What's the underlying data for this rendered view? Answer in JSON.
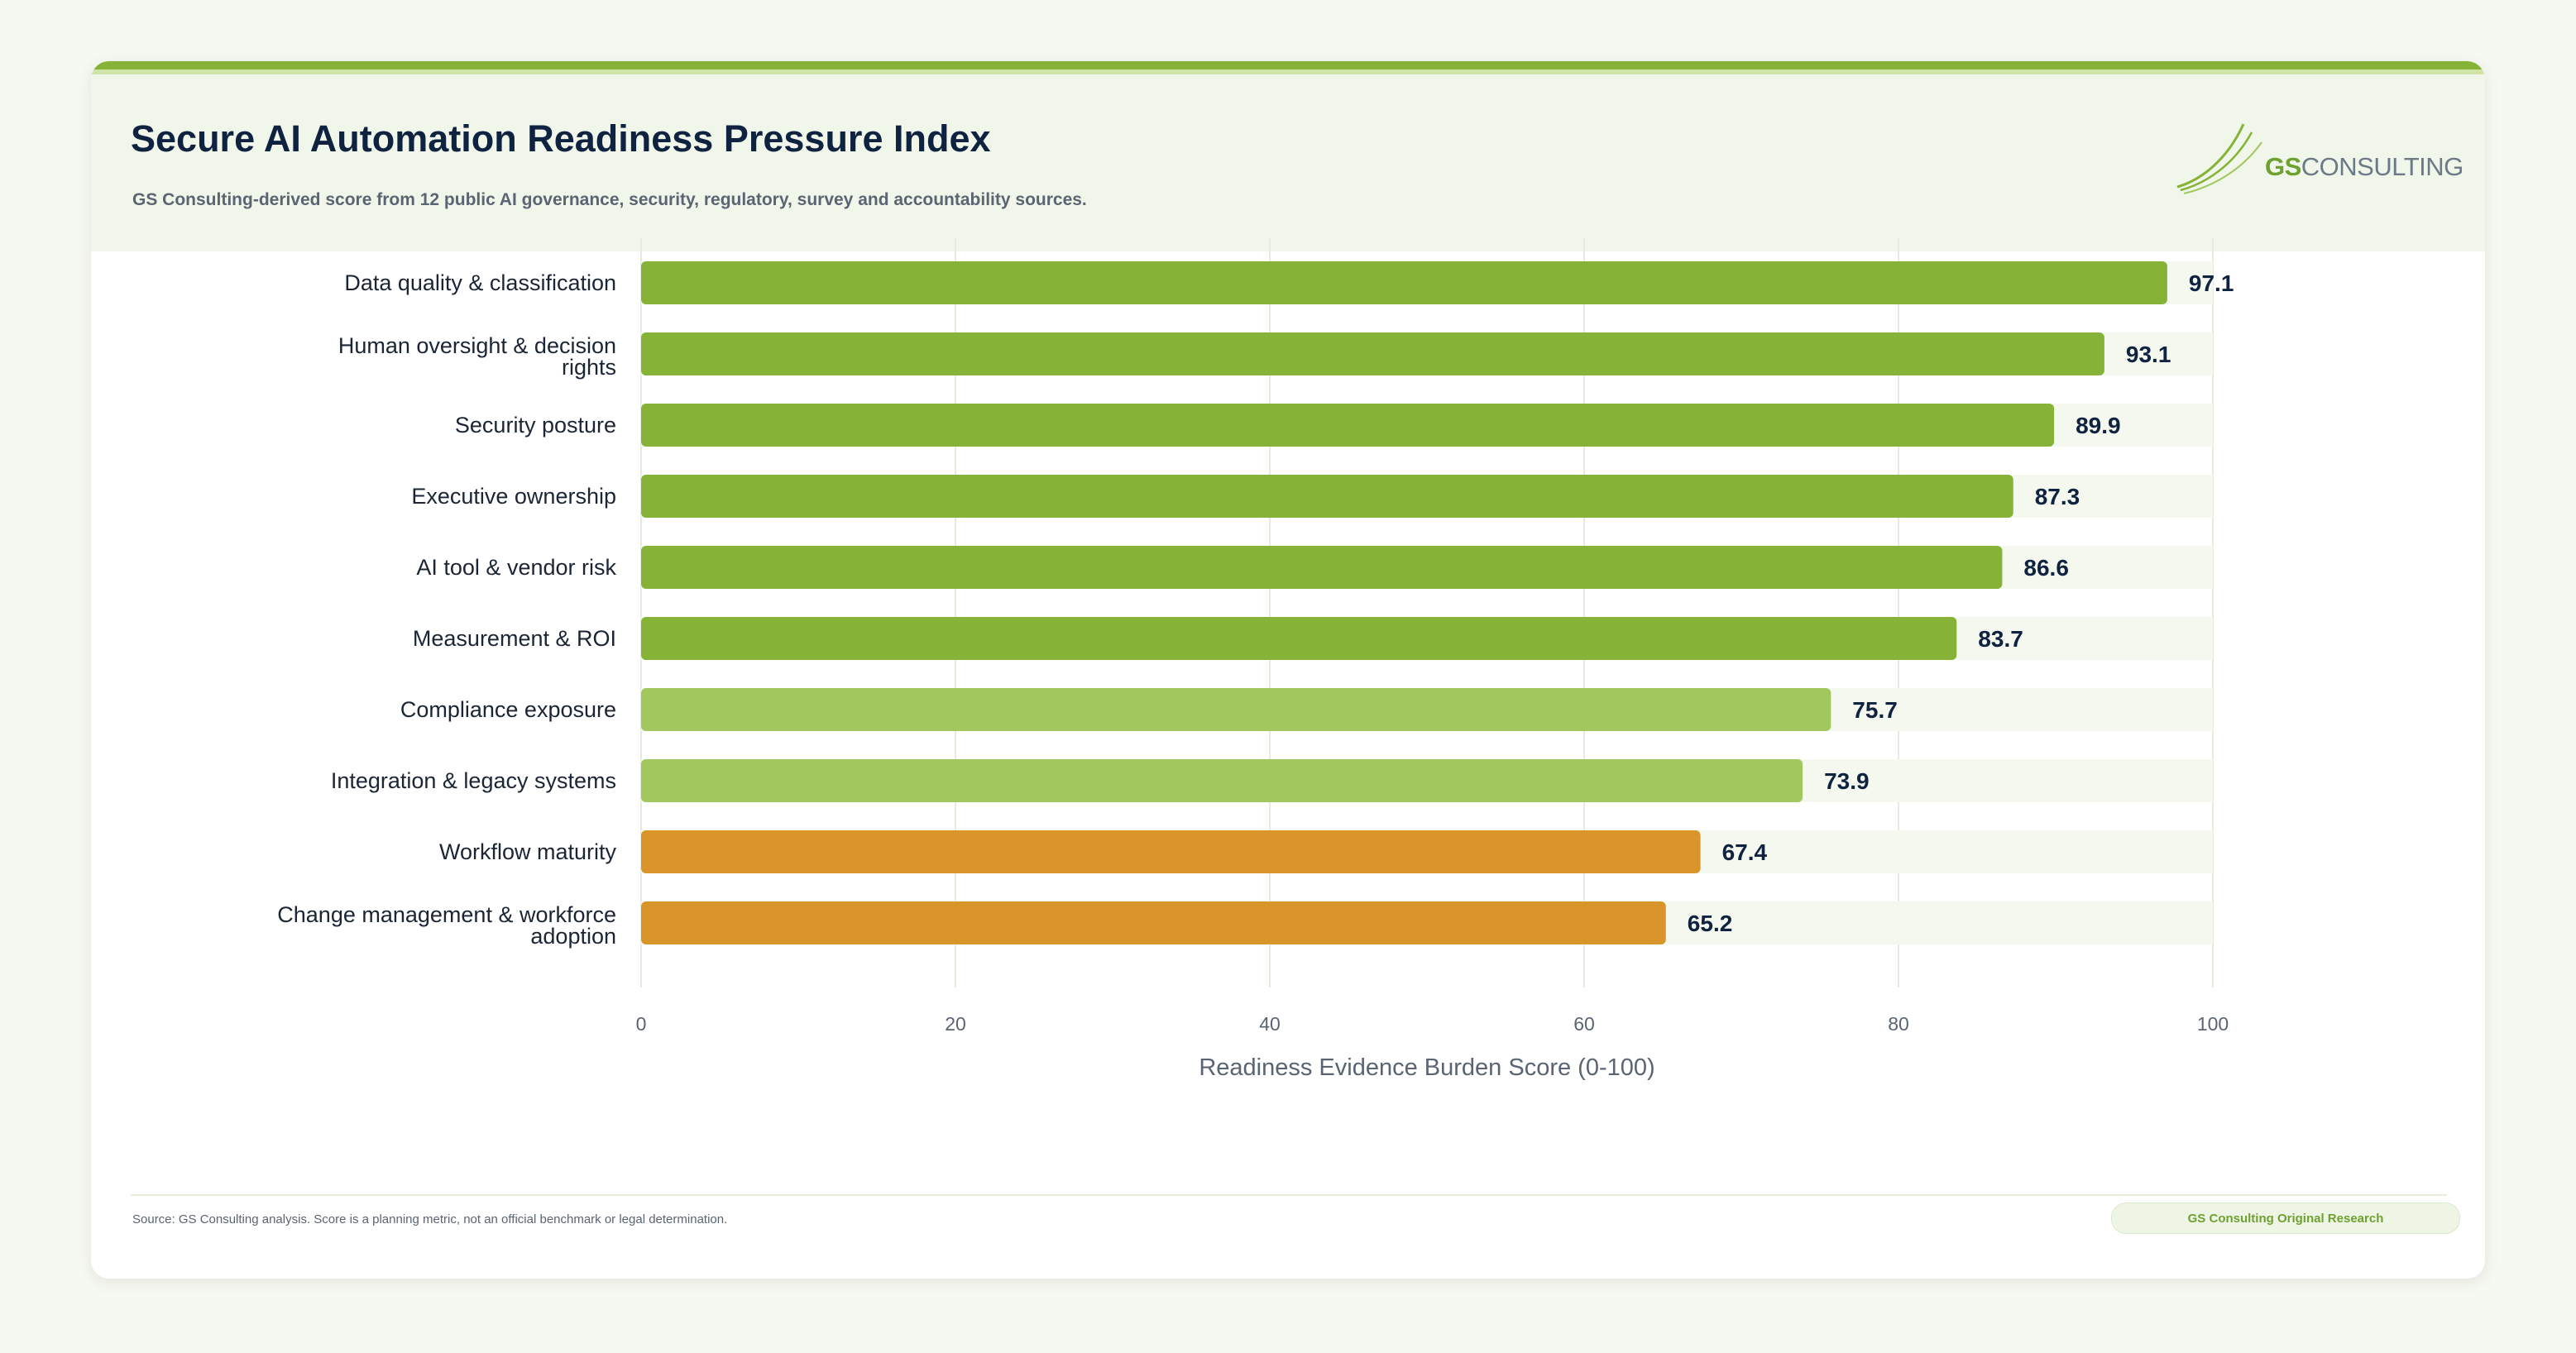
{
  "header": {
    "title": "Secure AI Automation Readiness Pressure Index",
    "subtitle": "GS Consulting-derived score from 12 public AI governance, security, regulatory, survey and accountability sources."
  },
  "logo": {
    "gs": "GS",
    "rest": "CONSULTING"
  },
  "footer": {
    "source": "Source: GS Consulting analysis. Score is a planning metric, not an official benchmark or legal determination.",
    "badge": "GS Consulting Original Research"
  },
  "colors": {
    "high": "#85b237",
    "mid": "#a3c75f",
    "low": "#d9952a",
    "track": "#f4f8ee",
    "grid": "#e6ebe0"
  },
  "chart_data": {
    "type": "bar",
    "orientation": "horizontal",
    "categories": [
      [
        "Data quality & classification"
      ],
      [
        "Human oversight & decision",
        "rights"
      ],
      [
        "Security posture"
      ],
      [
        "Executive ownership"
      ],
      [
        "AI tool & vendor risk"
      ],
      [
        "Measurement & ROI"
      ],
      [
        "Compliance exposure"
      ],
      [
        "Integration & legacy systems"
      ],
      [
        "Workflow maturity"
      ],
      [
        "Change management & workforce",
        "adoption"
      ]
    ],
    "values": [
      97.1,
      93.1,
      89.9,
      87.3,
      86.6,
      83.7,
      75.7,
      73.9,
      67.4,
      65.2
    ],
    "value_labels": [
      "97.1",
      "93.1",
      "89.9",
      "87.3",
      "86.6",
      "83.7",
      "75.7",
      "73.9",
      "67.4",
      "65.2"
    ],
    "bar_color_keys": [
      "high",
      "high",
      "high",
      "high",
      "high",
      "high",
      "mid",
      "mid",
      "low",
      "low"
    ],
    "xlabel": "Readiness Evidence Burden Score (0-100)",
    "ylabel": "",
    "xlim": [
      0,
      100
    ],
    "xticks": [
      0,
      20,
      40,
      60,
      80,
      100
    ],
    "grid": true,
    "legend": "none"
  }
}
